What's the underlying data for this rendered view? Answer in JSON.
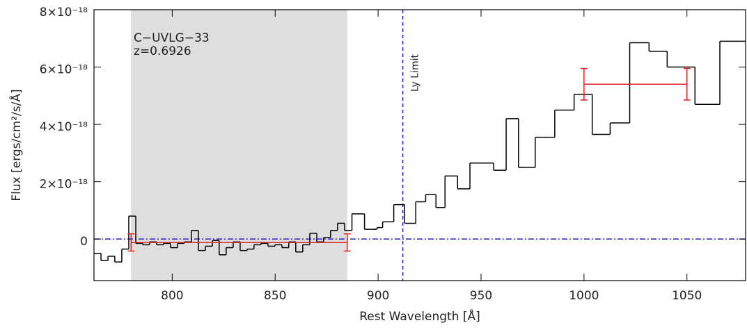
{
  "chart_data": {
    "type": "step",
    "xlabel": "Rest Wavelength [Å]",
    "ylabel": "Flux [ergs/cm²/s/Å]",
    "annotations": [
      "C−UVLG−33",
      "z=0.6926"
    ],
    "xlim": [
      762,
      1078.5
    ],
    "ylim": [
      -1.45e-18,
      8e-18
    ],
    "xticks": [
      800,
      850,
      900,
      950,
      1000,
      1050
    ],
    "yticks": [
      0,
      {
        "value": 2e-18,
        "label": "2×10⁻¹⁸"
      },
      {
        "value": 4e-18,
        "label": "4×10⁻¹⁸"
      },
      {
        "value": 6e-18,
        "label": "6×10⁻¹⁸"
      },
      {
        "value": 8e-18,
        "label": "8×10⁻¹⁸"
      }
    ],
    "shade": [
      780,
      885
    ],
    "shade_color": "#dedede",
    "hline": 0,
    "hline_color": "#2222cc",
    "vline": {
      "x": 912,
      "label": "Ly Limit",
      "color": "#2222cc"
    },
    "series": [
      {
        "color": "#000000",
        "bins": [
          762.0,
          765.4,
          768.8,
          772.1,
          775.5,
          778.9,
          782.3,
          785.7,
          789.0,
          792.4,
          795.8,
          799.2,
          802.6,
          805.9,
          809.3,
          812.7,
          816.1,
          819.5,
          822.8,
          826.2,
          829.6,
          833.0,
          836.4,
          839.7,
          843.1,
          846.5,
          849.9,
          853.3,
          856.6,
          860.0,
          863.4,
          866.8,
          870.2,
          873.5,
          876.9,
          880.3,
          883.7,
          887.3,
          893.4,
          899.5,
          902.2,
          907.6,
          912.9,
          918.3,
          923.1,
          928.1,
          932.5,
          938.6,
          944.6,
          956.1,
          962.2,
          968.2,
          976.3,
          985.8,
          995.2,
          1004.0,
          1012.7,
          1022.2,
          1031.6,
          1040.4,
          1053.9,
          1066.0,
          1078.5
        ],
        "values": [
          -5e-19,
          -7.5e-19,
          -6e-19,
          -8e-19,
          -3.5e-19,
          8e-19,
          -1.5e-19,
          -2e-19,
          -1e-19,
          -2e-19,
          -1.5e-19,
          -3e-19,
          -1.5e-19,
          -1e-19,
          3e-19,
          -4e-19,
          -2.5e-19,
          -5e-20,
          -5.5e-19,
          -3e-19,
          -1e-19,
          -4e-19,
          -3.5e-19,
          -2e-19,
          -1.5e-19,
          -2.5e-19,
          -2e-19,
          -3e-19,
          -1e-19,
          -4.5e-19,
          -2e-19,
          2e-19,
          -1e-19,
          5e-20,
          3e-19,
          5.5e-19,
          3e-19,
          8.8e-19,
          3.4e-19,
          4e-19,
          6e-19,
          1.2e-18,
          5.5e-19,
          1.3e-18,
          1.55e-18,
          1.1e-18,
          2.2e-18,
          1.75e-18,
          2.65e-18,
          2.4e-18,
          4.2e-18,
          2.5e-18,
          3.55e-18,
          4.5e-18,
          5.05e-18,
          3.65e-18,
          4.05e-18,
          6.85e-18,
          6.55e-18,
          6e-18,
          4.7e-18,
          6.9e-18
        ]
      }
    ],
    "means": {
      "color": "#dd2222",
      "items": [
        {
          "x": [
            780,
            885
          ],
          "value": -1.2e-19,
          "error": 3e-19
        },
        {
          "x": [
            1000,
            1050
          ],
          "value": 5.4e-18,
          "error": 5.5e-19
        }
      ]
    }
  }
}
